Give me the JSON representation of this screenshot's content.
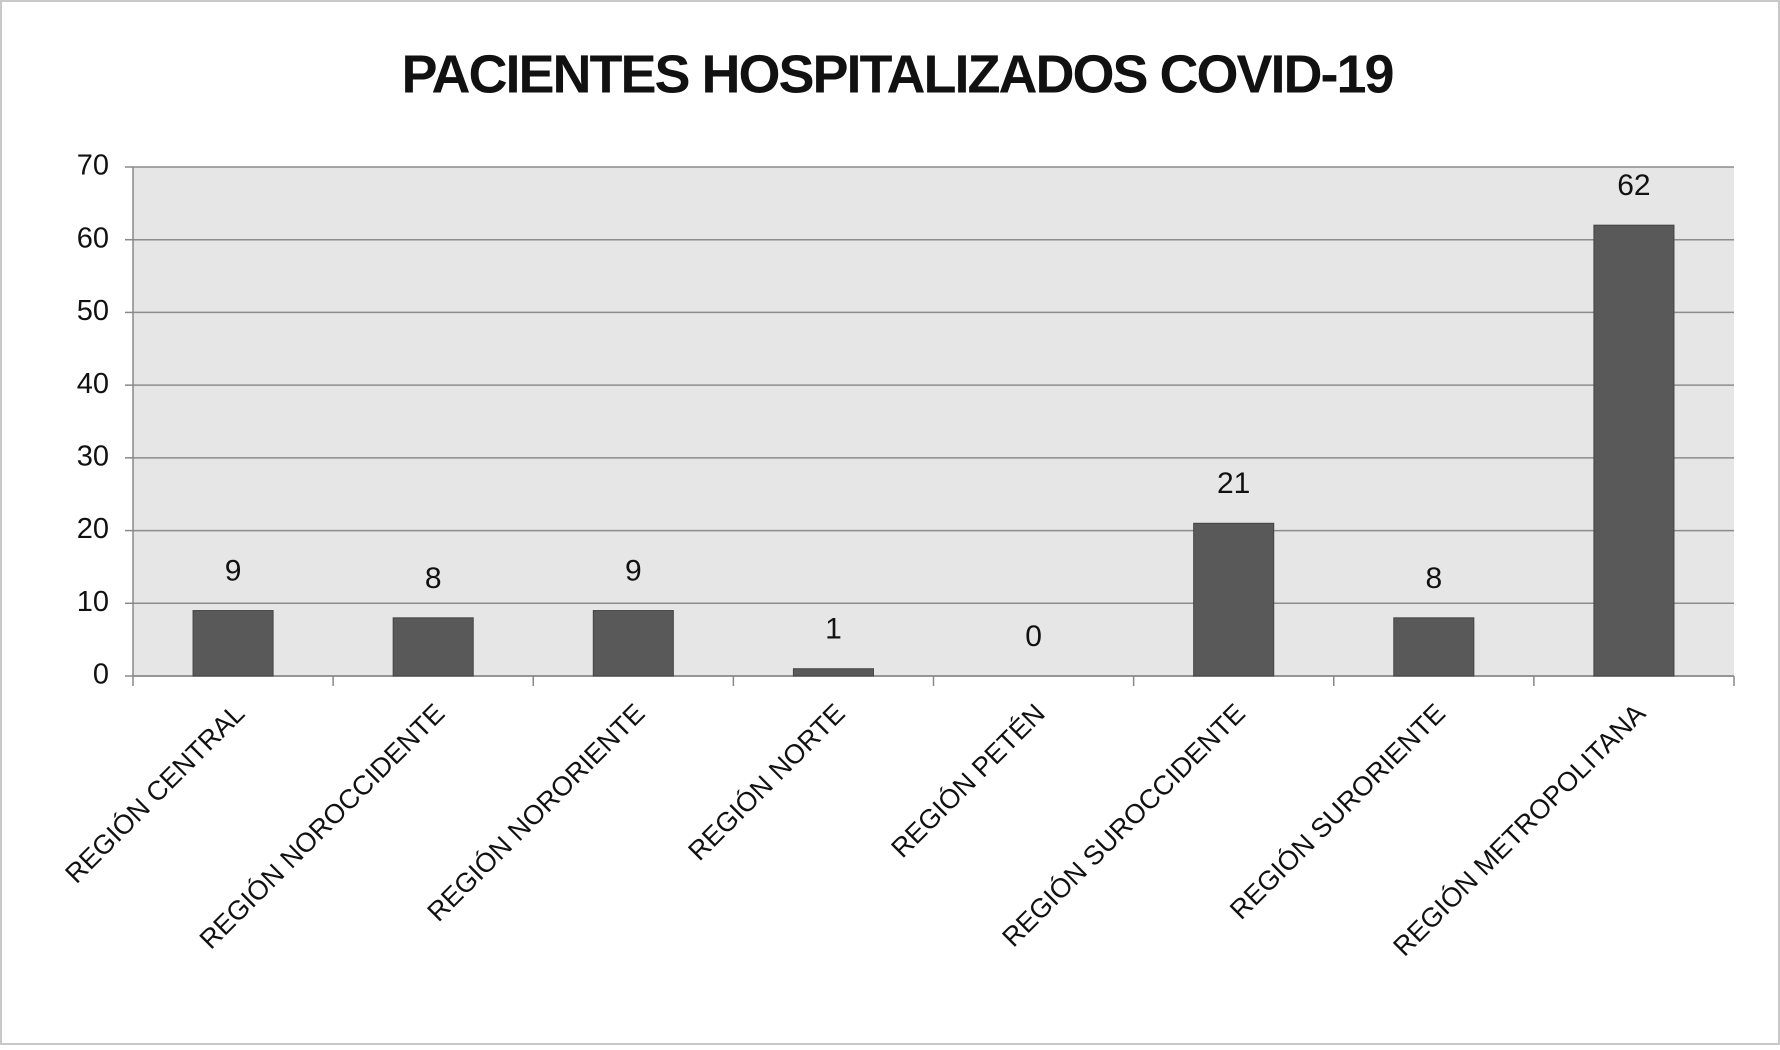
{
  "chart_data": {
    "type": "bar",
    "title": "PACIENTES HOSPITALIZADOS COVID-19",
    "categories": [
      "REGIÓN CENTRAL",
      "REGIÓN NOROCCIDENTE",
      "REGIÓN NORORIENTE",
      "REGIÓN NORTE",
      "REGIÓN PETÉN",
      "REGIÓN SUROCCIDENTE",
      "REGIÓN SURORIENTE",
      "REGIÓN METROPOLITANA"
    ],
    "values": [
      9,
      8,
      9,
      1,
      0,
      21,
      8,
      62
    ],
    "color": "#595959",
    "ylim": [
      0,
      70
    ],
    "yticks": [
      0,
      10,
      20,
      30,
      40,
      50,
      60,
      70
    ],
    "grid": true
  }
}
